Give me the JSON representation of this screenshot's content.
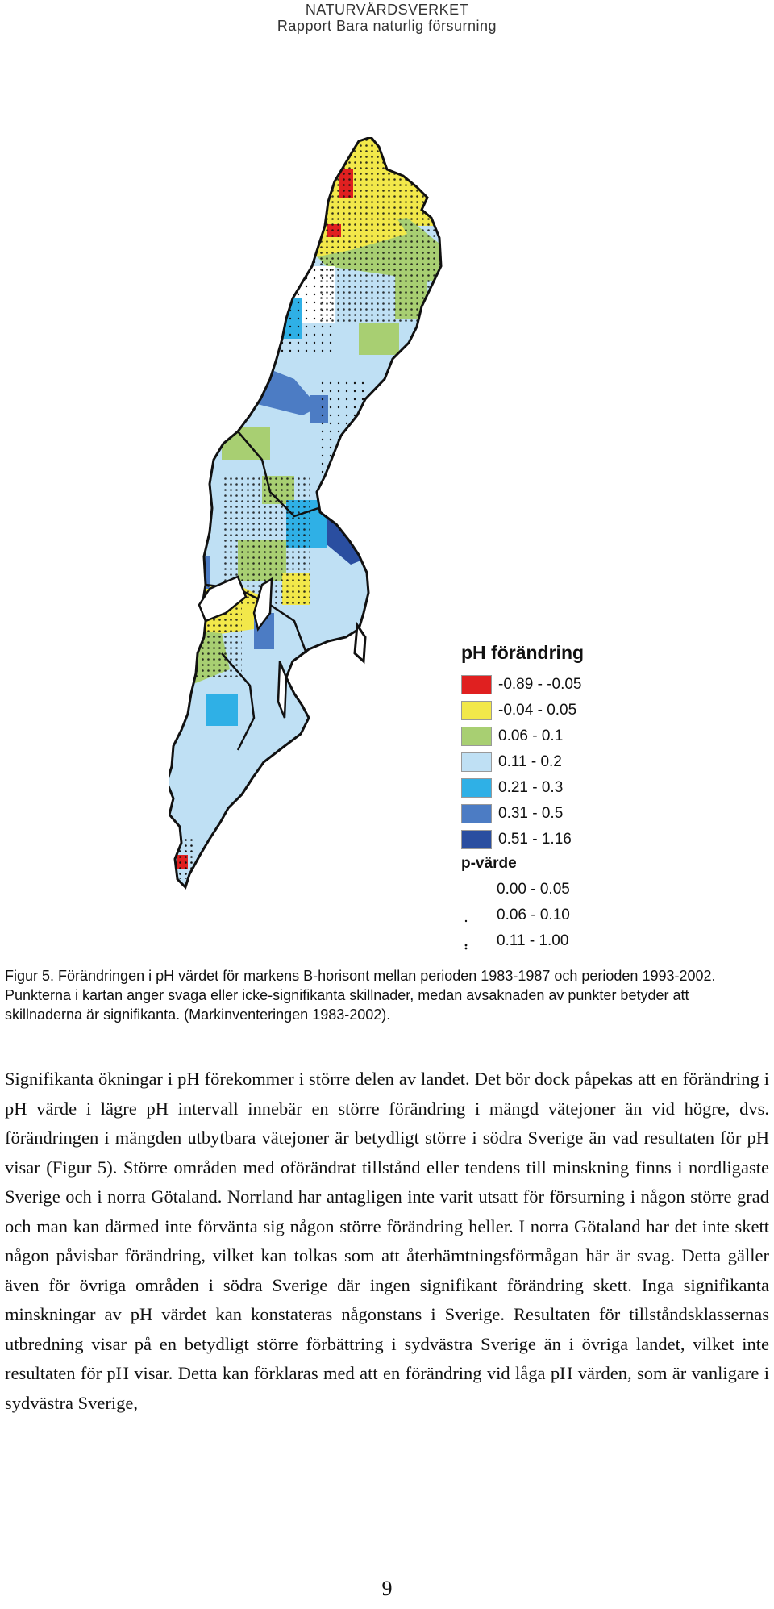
{
  "header": {
    "agency": "NATURVÅRDSVERKET",
    "report": "Rapport Bara naturlig försurning"
  },
  "legend": {
    "title": "pH förändring",
    "ph_classes": [
      {
        "label": "-0.89 - -0.05",
        "color": "#e02020"
      },
      {
        "label": "-0.04 - 0.05",
        "color": "#f2e84a"
      },
      {
        "label": "0.06 - 0.1",
        "color": "#a8cf72"
      },
      {
        "label": "0.11 - 0.2",
        "color": "#bfe0f4"
      },
      {
        "label": "0.21 - 0.3",
        "color": "#2fb0e6"
      },
      {
        "label": "0.31 - 0.5",
        "color": "#4c7cc4"
      },
      {
        "label": "0.51 - 1.16",
        "color": "#2a4ea0"
      }
    ],
    "p_title": "p-värde",
    "p_classes": [
      {
        "label": "0.00 - 0.05",
        "dots": "none"
      },
      {
        "label": "0.06 - 0.10",
        "dots": "sparse"
      },
      {
        "label": "0.11 - 1.00",
        "dots": "dense"
      }
    ]
  },
  "caption": "Figur 5. Förändringen i pH värdet för markens B-horisont mellan perioden 1983-1987 och perioden 1993-2002. Punkterna i kartan anger svaga eller icke-signifikanta skillnader, medan avsaknaden av punkter betyder att skillnaderna är signifikanta. (Markinventeringen 1983-2002).",
  "body": "Signifikanta ökningar i pH förekommer i större delen av landet. Det bör dock påpekas att en förändring i pH värde i lägre pH intervall innebär en större förändring i mängd vätejoner än vid högre, dvs. förändringen i mängden utbytbara vätejoner är betydligt större i södra Sverige än vad resultaten för pH visar (Figur 5). Större områden med oförändrat tillstånd eller tendens till minskning finns i nordligaste Sverige och i norra Götaland. Norrland har antagligen inte varit utsatt för försurning i någon större grad och man kan därmed inte förvänta sig någon större förändring heller. I norra Götaland har det inte skett någon påvisbar förändring, vilket kan tolkas som att återhämtningsförmågan här är svag. Detta gäller även för övriga områden i södra Sverige där ingen signifikant förändring skett. Inga signifikanta minskningar av pH värdet kan konstateras någonstans i Sverige. Resultaten för tillståndsklassernas utbredning visar på en betydligt större förbättring i sydvästra Sverige än i övriga landet, vilket inte resultaten för pH visar. Detta kan förklaras med att en förändring vid låga pH värden, som är vanligare i sydvästra Sverige,",
  "page_number": "9"
}
